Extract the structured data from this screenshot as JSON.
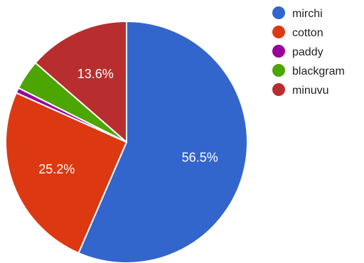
{
  "chart_data": {
    "type": "pie",
    "title": "",
    "labels": [
      "mirchi",
      "cotton",
      "paddy",
      "blackgram",
      "minuvu"
    ],
    "values": [
      56.5,
      25.2,
      0.7,
      4.0,
      13.6
    ],
    "value_labels": [
      "56.5%",
      "25.2%",
      "",
      "",
      "13.6%"
    ],
    "colors": [
      "#3366cc",
      "#dc3912",
      "#990099",
      "#4ca500",
      "#b82e2e"
    ],
    "start_angle_deg": 0,
    "direction": "clockwise",
    "legend": "right"
  }
}
